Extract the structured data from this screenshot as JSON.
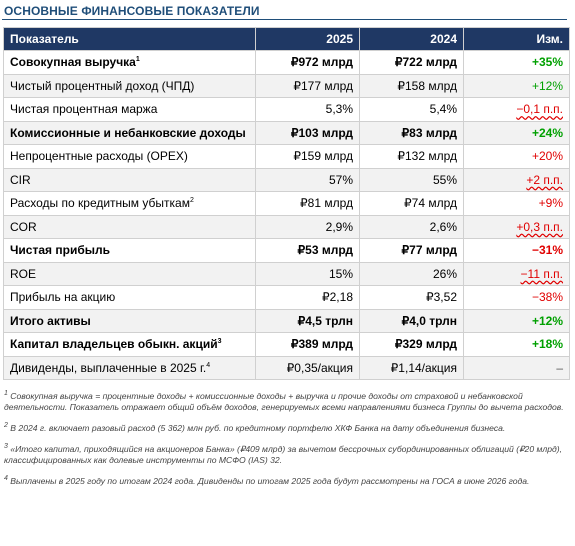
{
  "title": "ОСНОВНЫЕ ФИНАНСОВЫЕ ПОКАЗАТЕЛИ",
  "table": {
    "headers": [
      "Показатель",
      "2025",
      "2024",
      "Изм."
    ],
    "rows": [
      {
        "name": "Совокупная выручка",
        "sup": "1",
        "v2025": "₽972 млрд",
        "v2024": "₽722 млрд",
        "change": "+35%",
        "dir": "pos",
        "bold": true,
        "wavy": false
      },
      {
        "name": "Чистый процентный доход (ЧПД)",
        "sup": "",
        "v2025": "₽177 млрд",
        "v2024": "₽158 млрд",
        "change": "+12%",
        "dir": "pos",
        "bold": false,
        "wavy": false
      },
      {
        "name": "Чистая процентная маржа",
        "sup": "",
        "v2025": "5,3%",
        "v2024": "5,4%",
        "change": "−0,1 п.п.",
        "dir": "neg",
        "bold": false,
        "wavy": true
      },
      {
        "name": "Комиссионные и небанковские доходы",
        "sup": "",
        "v2025": "₽103 млрд",
        "v2024": "₽83 млрд",
        "change": "+24%",
        "dir": "pos",
        "bold": true,
        "wavy": false
      },
      {
        "name": "Непроцентные расходы (OPEX)",
        "sup": "",
        "v2025": "₽159 млрд",
        "v2024": "₽132 млрд",
        "change": "+20%",
        "dir": "neg",
        "bold": false,
        "wavy": false
      },
      {
        "name": "CIR",
        "sup": "",
        "v2025": "57%",
        "v2024": "55%",
        "change": "+2 п.п.",
        "dir": "neg",
        "bold": false,
        "wavy": true
      },
      {
        "name": "Расходы по кредитным убыткам",
        "sup": "2",
        "v2025": "₽81 млрд",
        "v2024": "₽74 млрд",
        "change": "+9%",
        "dir": "neg",
        "bold": false,
        "wavy": false
      },
      {
        "name": "COR",
        "sup": "",
        "v2025": "2,9%",
        "v2024": "2,6%",
        "change": "+0,3 п.п.",
        "dir": "neg",
        "bold": false,
        "wavy": true
      },
      {
        "name": "Чистая прибыль",
        "sup": "",
        "v2025": "₽53 млрд",
        "v2024": "₽77 млрд",
        "change": "−31%",
        "dir": "neg",
        "bold": true,
        "wavy": false
      },
      {
        "name": "ROE",
        "sup": "",
        "v2025": "15%",
        "v2024": "26%",
        "change": "−11 п.п.",
        "dir": "neg",
        "bold": false,
        "wavy": true
      },
      {
        "name": "Прибыль на акцию",
        "sup": "",
        "v2025": "₽2,18",
        "v2024": "₽3,52",
        "change": "−38%",
        "dir": "neg",
        "bold": false,
        "wavy": false
      },
      {
        "name": "Итого активы",
        "sup": "",
        "v2025": "₽4,5 трлн",
        "v2024": "₽4,0 трлн",
        "change": "+12%",
        "dir": "pos",
        "bold": true,
        "wavy": false
      },
      {
        "name": "Капитал владельцев обыкн. акций",
        "sup": "3",
        "v2025": "₽389 млрд",
        "v2024": "₽329 млрд",
        "change": "+18%",
        "dir": "pos",
        "bold": true,
        "wavy": false
      },
      {
        "name": "Дивиденды, выплаченные в 2025 г.",
        "sup": "4",
        "v2025": "₽0,35/акция",
        "v2024": "₽1,14/акция",
        "change": "–",
        "dir": "neu",
        "bold": false,
        "wavy": false
      }
    ]
  },
  "footnotes": [
    {
      "num": "1",
      "text": " Совокупная выручка = процентные доходы + комиссионные доходы + выручка и прочие доходы от страховой и небанковской деятельности. Показатель отражает общий объём доходов, генерируемых всеми направлениями бизнеса Группы до вычета расходов."
    },
    {
      "num": "2",
      "text": " В 2024 г. включает разовый расход (5 362) млн руб. по кредитному портфелю ХКФ Банка на дату объединения бизнеса."
    },
    {
      "num": "3",
      "text": " «Итого капитал, приходящийся на акционеров Банка» (₽409 млрд) за вычетом бессрочных субординированных облигаций (₽20 млрд), классифицированных как долевые инструменты по МСФО (IAS) 32."
    },
    {
      "num": "4",
      "text": " Выплачены в 2025 году по итогам 2024 года. Дивиденды по итогам 2025 года будут рассмотрены на ГОСА в июне 2026 года."
    }
  ],
  "colors": {
    "header_bg": "#1f3864",
    "title": "#1f4e79",
    "positive": "#00a000",
    "negative": "#e00000"
  }
}
